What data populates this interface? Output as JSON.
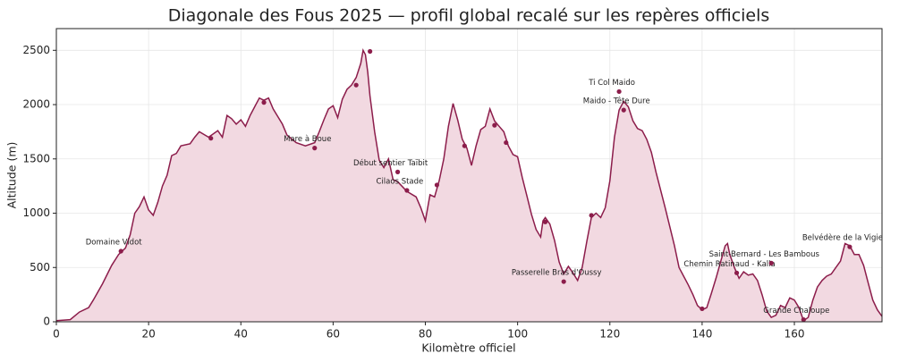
{
  "chart_data": {
    "type": "area-line",
    "title": "Diagonale des Fous 2025 — profil global recalé sur les repères officiels",
    "xlabel": "Kilomètre officiel",
    "ylabel": "Altitude (m)",
    "color": "#8c1d4b",
    "fill_color": "#f2d9e1",
    "grid": true,
    "xlim": [
      0,
      179
    ],
    "ylim": [
      0,
      2700
    ],
    "xticks": [
      0,
      20,
      40,
      60,
      80,
      100,
      120,
      140,
      160
    ],
    "yticks": [
      0,
      500,
      1000,
      1500,
      2000,
      2500
    ],
    "x": [
      0,
      3,
      5,
      7,
      8,
      10,
      12,
      13.5,
      15,
      16,
      17,
      18,
      19,
      20,
      21,
      22,
      23,
      24,
      25,
      26,
      27,
      29,
      30,
      31,
      33,
      35,
      36,
      37,
      38,
      39,
      40,
      41,
      42,
      43,
      44,
      45,
      46,
      47,
      49,
      50,
      52,
      54,
      56,
      57,
      58,
      59,
      60,
      61,
      62,
      63,
      64,
      65,
      66,
      66.5,
      67,
      67.5,
      68,
      69,
      70,
      71,
      72,
      73,
      74,
      76,
      78,
      79,
      80,
      81,
      82,
      83,
      84,
      85,
      86,
      87,
      88,
      89,
      90,
      91,
      92,
      93,
      94,
      95,
      96,
      97,
      98,
      99,
      100,
      101,
      102,
      103,
      104,
      105,
      105.5,
      106,
      107,
      108,
      109,
      110,
      111,
      112,
      113,
      114,
      115,
      116,
      117,
      118,
      119,
      120,
      121,
      122,
      123,
      124,
      125,
      126,
      127,
      128,
      129,
      130,
      132,
      134,
      135,
      137,
      138,
      139,
      140,
      141,
      142,
      143,
      144,
      145,
      145.5,
      146,
      147,
      148,
      149,
      150,
      151,
      152,
      153,
      154,
      155,
      156,
      157,
      158,
      159,
      160,
      161,
      162,
      163,
      164,
      165,
      166,
      167,
      168,
      169,
      170,
      171,
      172,
      173,
      174,
      175,
      176,
      177,
      178,
      179
    ],
    "values": [
      10,
      20,
      90,
      130,
      200,
      350,
      520,
      620,
      680,
      800,
      1000,
      1060,
      1150,
      1030,
      980,
      1100,
      1250,
      1350,
      1530,
      1550,
      1620,
      1640,
      1700,
      1750,
      1700,
      1760,
      1700,
      1900,
      1870,
      1820,
      1860,
      1800,
      1900,
      1980,
      2060,
      2040,
      2060,
      1960,
      1820,
      1720,
      1650,
      1620,
      1650,
      1750,
      1860,
      1960,
      1990,
      1880,
      2050,
      2140,
      2180,
      2250,
      2380,
      2500,
      2460,
      2300,
      2080,
      1750,
      1490,
      1420,
      1500,
      1310,
      1290,
      1200,
      1150,
      1050,
      930,
      1170,
      1150,
      1300,
      1500,
      1800,
      2010,
      1860,
      1680,
      1600,
      1440,
      1620,
      1770,
      1800,
      1960,
      1850,
      1800,
      1750,
      1620,
      1540,
      1520,
      1330,
      1160,
      990,
      850,
      780,
      930,
      960,
      900,
      750,
      550,
      440,
      510,
      450,
      380,
      500,
      740,
      960,
      1000,
      960,
      1050,
      1300,
      1700,
      1950,
      2030,
      1980,
      1850,
      1780,
      1760,
      1680,
      1560,
      1380,
      1050,
      700,
      500,
      340,
      250,
      150,
      110,
      130,
      260,
      400,
      550,
      700,
      720,
      620,
      500,
      400,
      460,
      430,
      440,
      380,
      250,
      100,
      40,
      60,
      150,
      130,
      220,
      200,
      130,
      10,
      40,
      200,
      320,
      380,
      420,
      440,
      500,
      560,
      720,
      700,
      620,
      620,
      520,
      360,
      200,
      110,
      50
    ],
    "landmarks": {
      "x": [
        14,
        33.5,
        45,
        56,
        65,
        68,
        74,
        76,
        82.5,
        88.5,
        95,
        97.5,
        106,
        110,
        116,
        122,
        123,
        140,
        147.5,
        155,
        162,
        172
      ],
      "values": [
        650,
        1690,
        2020,
        1600,
        2180,
        2490,
        1380,
        1210,
        1260,
        1620,
        1810,
        1650,
        920,
        370,
        980,
        2120,
        1950,
        120,
        450,
        540,
        20,
        690
      ],
      "labels": [
        "Domaine Vidot",
        null,
        null,
        "Mare à Boue",
        null,
        null,
        "Début sentier Taïbit",
        "Cilaos Stade",
        null,
        null,
        null,
        null,
        null,
        "Passerelle Bras d'Oussy",
        null,
        "Ti Col Maido",
        "Maido - Tête Dure",
        null,
        "Chemin Ratinaud - Kalla",
        "Saint-Bernard - Les Bambous",
        "Grande Chaloupe",
        "Belvédère de la Vigie"
      ]
    }
  }
}
